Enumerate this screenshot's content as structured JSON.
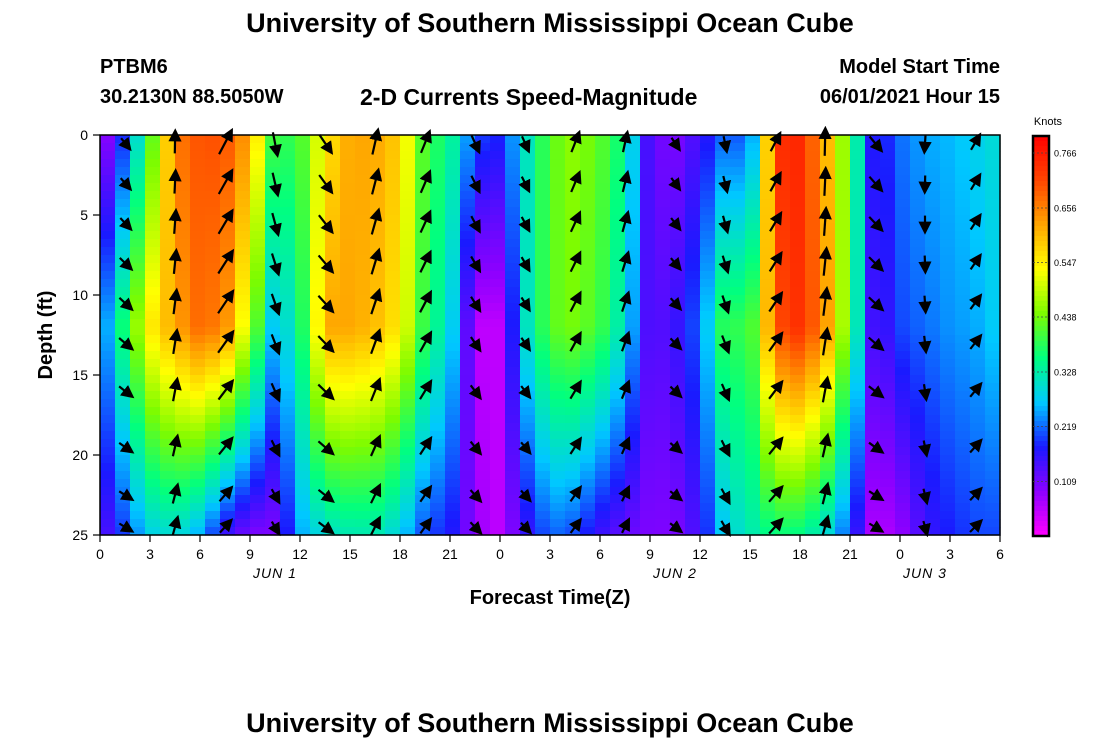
{
  "header": {
    "title": "University of Southern Mississippi Ocean Cube",
    "station": "PTBM6",
    "coords": "30.2130N  88.5050W",
    "chart_title": "2-D Currents Speed-Magnitude",
    "start_label": "Model Start Time",
    "start_value": "06/01/2021 Hour 15",
    "footer_title": "University of Southern Mississippi Ocean Cube"
  },
  "chart_data": {
    "type": "heatmap",
    "title": "2-D Currents Speed-Magnitude",
    "xlabel": "Forecast Time(Z)",
    "ylabel": "Depth (ft)",
    "x_ticks": [
      "0",
      "3",
      "6",
      "9",
      "12",
      "15",
      "18",
      "21",
      "0",
      "3",
      "6",
      "9",
      "12",
      "15",
      "18",
      "21",
      "0",
      "3",
      "6"
    ],
    "x_day_labels": [
      {
        "label": "JUN 1",
        "tick_index": 3.5
      },
      {
        "label": "JUN 2",
        "tick_index": 11.5
      },
      {
        "label": "JUN 3",
        "tick_index": 16.5
      }
    ],
    "y_ticks": [
      0,
      5,
      10,
      15,
      20,
      25
    ],
    "ylim": [
      0,
      25
    ],
    "hours_range": [
      0,
      54
    ],
    "colorbar": {
      "unit": "Knots",
      "ticks": [
        "0.766",
        "0.656",
        "0.547",
        "0.438",
        "0.328",
        "0.219",
        "0.109"
      ],
      "min": 0.0,
      "max": 0.8,
      "colors": [
        "#ff00ff",
        "#8c00ff",
        "#1a1aff",
        "#00c8ff",
        "#00ff80",
        "#7cfc00",
        "#ffff00",
        "#ffa500",
        "#ff4500",
        "#ff0000"
      ]
    },
    "speed_by_depth": {
      "hours": [
        0,
        1.5,
        3,
        4.5,
        6,
        7.5,
        9,
        10.5,
        12,
        13.5,
        15,
        16.5,
        18,
        19.5,
        21,
        22.5,
        24,
        25.5,
        27,
        28.5,
        30,
        31.5,
        33,
        34.5,
        36,
        37.5,
        39,
        40.5,
        42,
        43.5,
        45,
        46.5,
        48,
        49.5,
        51,
        52.5,
        54
      ],
      "surface": [
        0.05,
        0.2,
        0.4,
        0.66,
        0.7,
        0.7,
        0.62,
        0.38,
        0.4,
        0.55,
        0.62,
        0.62,
        0.58,
        0.4,
        0.35,
        0.2,
        0.18,
        0.3,
        0.42,
        0.46,
        0.42,
        0.35,
        0.12,
        0.1,
        0.15,
        0.22,
        0.2,
        0.74,
        0.75,
        0.62,
        0.4,
        0.15,
        0.22,
        0.25,
        0.26,
        0.28,
        0.3
      ],
      "mid": [
        0.2,
        0.38,
        0.55,
        0.62,
        0.68,
        0.65,
        0.48,
        0.25,
        0.35,
        0.62,
        0.62,
        0.6,
        0.55,
        0.38,
        0.3,
        0.05,
        0.05,
        0.3,
        0.42,
        0.44,
        0.4,
        0.3,
        0.12,
        0.15,
        0.22,
        0.4,
        0.38,
        0.7,
        0.74,
        0.65,
        0.4,
        0.12,
        0.2,
        0.22,
        0.24,
        0.25,
        0.28
      ],
      "bottom": [
        0.12,
        0.2,
        0.28,
        0.3,
        0.25,
        0.15,
        0.1,
        0.1,
        0.25,
        0.3,
        0.32,
        0.32,
        0.28,
        0.2,
        0.18,
        0.08,
        0.05,
        0.15,
        0.22,
        0.2,
        0.15,
        0.12,
        0.1,
        0.1,
        0.15,
        0.28,
        0.32,
        0.36,
        0.35,
        0.3,
        0.2,
        0.05,
        0.08,
        0.15,
        0.18,
        0.2,
        0.2
      ]
    }
  }
}
